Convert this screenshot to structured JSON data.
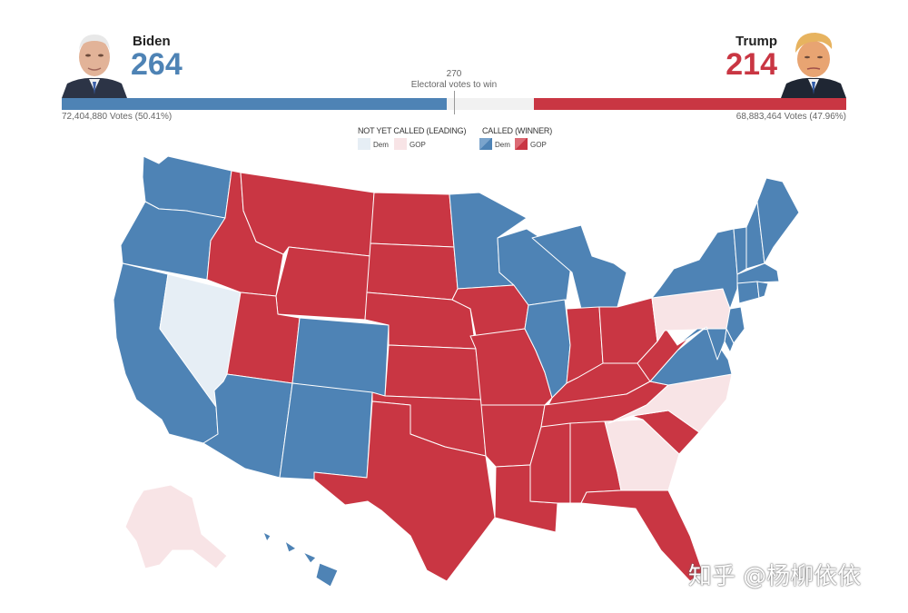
{
  "header": {
    "dem": {
      "name": "Biden",
      "electoral_votes": "264",
      "popular_votes": "72,404,880 Votes (50.41%)",
      "color": "#4e83b5"
    },
    "gop": {
      "name": "Trump",
      "electoral_votes": "214",
      "popular_votes": "68,883,464 Votes (47.96%)",
      "color": "#c93643"
    },
    "threshold": {
      "value": "270",
      "label": "Electoral votes to win"
    },
    "dem_share_of_538": 0.4907,
    "gop_share_of_538": 0.3978
  },
  "legend": {
    "not_called_title": "NOT YET CALLED (LEADING)",
    "called_title": "CALLED (WINNER)",
    "dem_label": "Dem",
    "gop_label": "GOP",
    "colors": {
      "dem_called": "#4e83b5",
      "gop_called": "#c93643",
      "dem_leading": "#e6eef5",
      "gop_leading": "#f8e4e6"
    }
  },
  "map": {
    "states": {
      "WA": "dem_called",
      "OR": "dem_called",
      "CA": "dem_called",
      "NV": "dem_leading",
      "ID": "gop_called",
      "MT": "gop_called",
      "WY": "gop_called",
      "UT": "gop_called",
      "AZ": "dem_called",
      "CO": "dem_called",
      "NM": "dem_called",
      "ND": "gop_called",
      "SD": "gop_called",
      "NE": "gop_called",
      "KS": "gop_called",
      "OK": "gop_called",
      "TX": "gop_called",
      "MN": "dem_called",
      "IA": "gop_called",
      "MO": "gop_called",
      "AR": "gop_called",
      "LA": "gop_called",
      "WI": "dem_called",
      "IL": "dem_called",
      "MI": "dem_called",
      "IN": "gop_called",
      "OH": "gop_called",
      "KY": "gop_called",
      "TN": "gop_called",
      "MS": "gop_called",
      "AL": "gop_called",
      "GA": "gop_leading",
      "FL": "gop_called",
      "SC": "gop_called",
      "NC": "gop_leading",
      "VA": "dem_called",
      "WV": "gop_called",
      "PA": "gop_leading",
      "NY": "dem_called",
      "VT": "dem_called",
      "NH": "dem_called",
      "ME": "dem_called",
      "MA": "dem_called",
      "NJ": "dem_called",
      "MD": "dem_called",
      "DE": "dem_called",
      "CT": "dem_called",
      "RI": "dem_called",
      "AK": "gop_leading",
      "HI": "dem_called"
    }
  },
  "watermark": "知乎 @杨柳依依"
}
